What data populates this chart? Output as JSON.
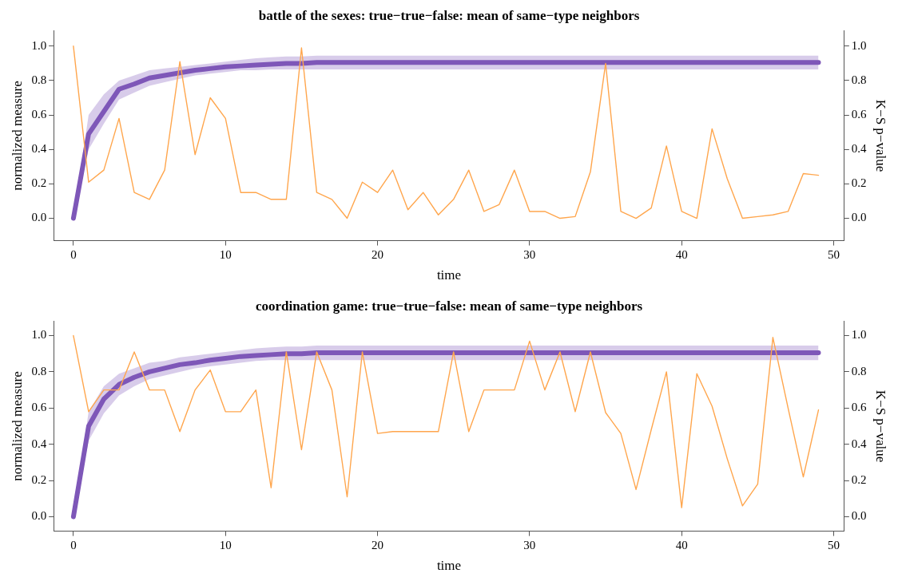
{
  "chart_data": [
    {
      "type": "line",
      "title": "battle of the sexes: true−true−false: mean of same−type neighbors",
      "xlabel": "time",
      "ylabel": "normalized measure",
      "y2label": "K−S p−value",
      "x": [
        0,
        1,
        2,
        3,
        4,
        5,
        6,
        7,
        8,
        9,
        10,
        11,
        12,
        13,
        14,
        15,
        16,
        17,
        18,
        19,
        20,
        21,
        22,
        23,
        24,
        25,
        26,
        27,
        28,
        29,
        30,
        31,
        32,
        33,
        34,
        35,
        36,
        37,
        38,
        39,
        40,
        41,
        42,
        43,
        44,
        45,
        46,
        47,
        48,
        49
      ],
      "xlim": [
        -1.3,
        50.7
      ],
      "xticks": [
        0,
        10,
        20,
        30,
        40,
        50
      ],
      "ylim": [
        -0.13,
        1.09
      ],
      "yticks": [
        {
          "value": 0,
          "label": "0.0"
        },
        {
          "value": 0.2,
          "label": "0.2"
        },
        {
          "value": 0.4,
          "label": "0.4"
        },
        {
          "value": 0.6,
          "label": "0.6"
        },
        {
          "value": 0.8,
          "label": "0.8"
        },
        {
          "value": 1,
          "label": "1.0"
        }
      ],
      "y2lim": [
        -0.13,
        1.09
      ],
      "y2ticks": [
        {
          "value": 0,
          "label": "0.0"
        },
        {
          "value": 0.2,
          "label": "0.2"
        },
        {
          "value": 0.4,
          "label": "0.4"
        },
        {
          "value": 0.6,
          "label": "0.6"
        },
        {
          "value": 0.8,
          "label": "0.8"
        },
        {
          "value": 1,
          "label": "1.0"
        }
      ],
      "series": [
        {
          "color": "#7e57b8",
          "values": [
            0,
            0.49,
            0.62,
            0.75,
            0.78,
            0.815,
            0.83,
            0.845,
            0.86,
            0.87,
            0.88,
            0.885,
            0.89,
            0.895,
            0.9,
            0.9,
            0.905,
            0.905,
            0.905,
            0.905,
            0.905,
            0.905,
            0.905,
            0.905,
            0.905,
            0.905,
            0.905,
            0.905,
            0.905,
            0.905,
            0.905,
            0.905,
            0.905,
            0.905,
            0.905,
            0.905,
            0.905,
            0.905,
            0.905,
            0.905,
            0.905,
            0.905,
            0.905,
            0.905,
            0.905,
            0.905,
            0.905,
            0.905,
            0.905,
            0.905
          ],
          "lower": [
            0,
            0.4,
            0.55,
            0.69,
            0.73,
            0.77,
            0.79,
            0.81,
            0.83,
            0.84,
            0.85,
            0.86,
            0.86,
            0.865,
            0.865,
            0.865,
            0.865,
            0.865,
            0.865,
            0.865,
            0.865,
            0.865,
            0.865,
            0.865,
            0.865,
            0.865,
            0.865,
            0.865,
            0.865,
            0.865,
            0.865,
            0.865,
            0.865,
            0.865,
            0.865,
            0.865,
            0.865,
            0.865,
            0.865,
            0.865,
            0.865,
            0.865,
            0.865,
            0.865,
            0.865,
            0.865,
            0.865,
            0.865,
            0.865,
            0.865
          ],
          "upper": [
            0,
            0.6,
            0.72,
            0.8,
            0.83,
            0.86,
            0.87,
            0.88,
            0.89,
            0.9,
            0.91,
            0.92,
            0.93,
            0.935,
            0.94,
            0.94,
            0.945,
            0.945,
            0.945,
            0.945,
            0.945,
            0.945,
            0.945,
            0.945,
            0.945,
            0.945,
            0.945,
            0.945,
            0.945,
            0.945,
            0.945,
            0.945,
            0.945,
            0.945,
            0.945,
            0.945,
            0.945,
            0.945,
            0.945,
            0.945,
            0.945,
            0.945,
            0.945,
            0.945,
            0.945,
            0.945,
            0.945,
            0.945,
            0.945,
            0.945
          ]
        },
        {
          "color": "#ffa64d",
          "axis": "y2",
          "values": [
            1.0,
            0.21,
            0.28,
            0.58,
            0.15,
            0.11,
            0.28,
            0.91,
            0.37,
            0.7,
            0.58,
            0.15,
            0.15,
            0.11,
            0.11,
            0.99,
            0.15,
            0.11,
            0.0,
            0.21,
            0.15,
            0.28,
            0.05,
            0.15,
            0.02,
            0.11,
            0.28,
            0.04,
            0.08,
            0.28,
            0.04,
            0.04,
            0.0,
            0.01,
            0.27,
            0.9,
            0.04,
            0.0,
            0.06,
            0.42,
            0.04,
            0.0,
            0.52,
            0.23,
            0.0,
            0.01,
            0.02,
            0.04,
            0.26,
            0.25
          ]
        }
      ]
    },
    {
      "type": "line",
      "title": "coordination game: true−true−false: mean of same−type neighbors",
      "xlabel": "time",
      "ylabel": "normalized measure",
      "y2label": "K−S p−value",
      "x": [
        0,
        1,
        2,
        3,
        4,
        5,
        6,
        7,
        8,
        9,
        10,
        11,
        12,
        13,
        14,
        15,
        16,
        17,
        18,
        19,
        20,
        21,
        22,
        23,
        24,
        25,
        26,
        27,
        28,
        29,
        30,
        31,
        32,
        33,
        34,
        35,
        36,
        37,
        38,
        39,
        40,
        41,
        42,
        43,
        44,
        45,
        46,
        47,
        48,
        49
      ],
      "xlim": [
        -1.3,
        50.7
      ],
      "xticks": [
        0,
        10,
        20,
        30,
        40,
        50
      ],
      "ylim": [
        -0.08,
        1.08
      ],
      "yticks": [
        {
          "value": 0,
          "label": "0.0"
        },
        {
          "value": 0.2,
          "label": "0.2"
        },
        {
          "value": 0.4,
          "label": "0.4"
        },
        {
          "value": 0.6,
          "label": "0.6"
        },
        {
          "value": 0.8,
          "label": "0.8"
        },
        {
          "value": 1,
          "label": "1.0"
        }
      ],
      "y2lim": [
        -0.08,
        1.08
      ],
      "y2ticks": [
        {
          "value": 0,
          "label": "0.0"
        },
        {
          "value": 0.2,
          "label": "0.2"
        },
        {
          "value": 0.4,
          "label": "0.4"
        },
        {
          "value": 0.6,
          "label": "0.6"
        },
        {
          "value": 0.8,
          "label": "0.8"
        },
        {
          "value": 1,
          "label": "1.0"
        }
      ],
      "series": [
        {
          "color": "#7e57b8",
          "values": [
            0,
            0.5,
            0.65,
            0.73,
            0.77,
            0.8,
            0.82,
            0.84,
            0.85,
            0.865,
            0.875,
            0.885,
            0.89,
            0.895,
            0.9,
            0.9,
            0.905,
            0.905,
            0.905,
            0.905,
            0.905,
            0.905,
            0.905,
            0.905,
            0.905,
            0.905,
            0.905,
            0.905,
            0.905,
            0.905,
            0.905,
            0.905,
            0.905,
            0.905,
            0.905,
            0.905,
            0.905,
            0.905,
            0.905,
            0.905,
            0.905,
            0.905,
            0.905,
            0.905,
            0.905,
            0.905,
            0.905,
            0.905,
            0.905,
            0.905
          ],
          "lower": [
            0,
            0.42,
            0.57,
            0.67,
            0.72,
            0.76,
            0.78,
            0.8,
            0.82,
            0.83,
            0.84,
            0.85,
            0.86,
            0.865,
            0.865,
            0.865,
            0.865,
            0.865,
            0.865,
            0.865,
            0.865,
            0.865,
            0.865,
            0.865,
            0.865,
            0.865,
            0.865,
            0.865,
            0.865,
            0.865,
            0.865,
            0.865,
            0.865,
            0.865,
            0.865,
            0.865,
            0.865,
            0.865,
            0.865,
            0.865,
            0.865,
            0.865,
            0.865,
            0.865,
            0.865,
            0.865,
            0.865,
            0.865,
            0.865,
            0.865
          ],
          "upper": [
            0,
            0.58,
            0.72,
            0.79,
            0.82,
            0.85,
            0.86,
            0.88,
            0.89,
            0.9,
            0.91,
            0.92,
            0.93,
            0.935,
            0.94,
            0.94,
            0.945,
            0.945,
            0.945,
            0.945,
            0.945,
            0.945,
            0.945,
            0.945,
            0.945,
            0.945,
            0.945,
            0.945,
            0.945,
            0.945,
            0.945,
            0.945,
            0.945,
            0.945,
            0.945,
            0.945,
            0.945,
            0.945,
            0.945,
            0.945,
            0.945,
            0.945,
            0.945,
            0.945,
            0.945,
            0.945,
            0.945,
            0.945,
            0.945,
            0.945
          ]
        },
        {
          "color": "#ffa64d",
          "axis": "y2",
          "values": [
            1.0,
            0.58,
            0.7,
            0.7,
            0.91,
            0.7,
            0.7,
            0.47,
            0.7,
            0.81,
            0.58,
            0.58,
            0.7,
            0.16,
            0.91,
            0.37,
            0.91,
            0.7,
            0.11,
            0.91,
            0.46,
            0.47,
            0.47,
            0.47,
            0.47,
            0.91,
            0.47,
            0.7,
            0.7,
            0.7,
            0.97,
            0.7,
            0.91,
            0.58,
            0.91,
            0.575,
            0.46,
            0.15,
            0.48,
            0.8,
            0.05,
            0.79,
            0.61,
            0.32,
            0.06,
            0.18,
            0.99,
            0.6,
            0.22,
            0.59
          ]
        }
      ]
    }
  ]
}
